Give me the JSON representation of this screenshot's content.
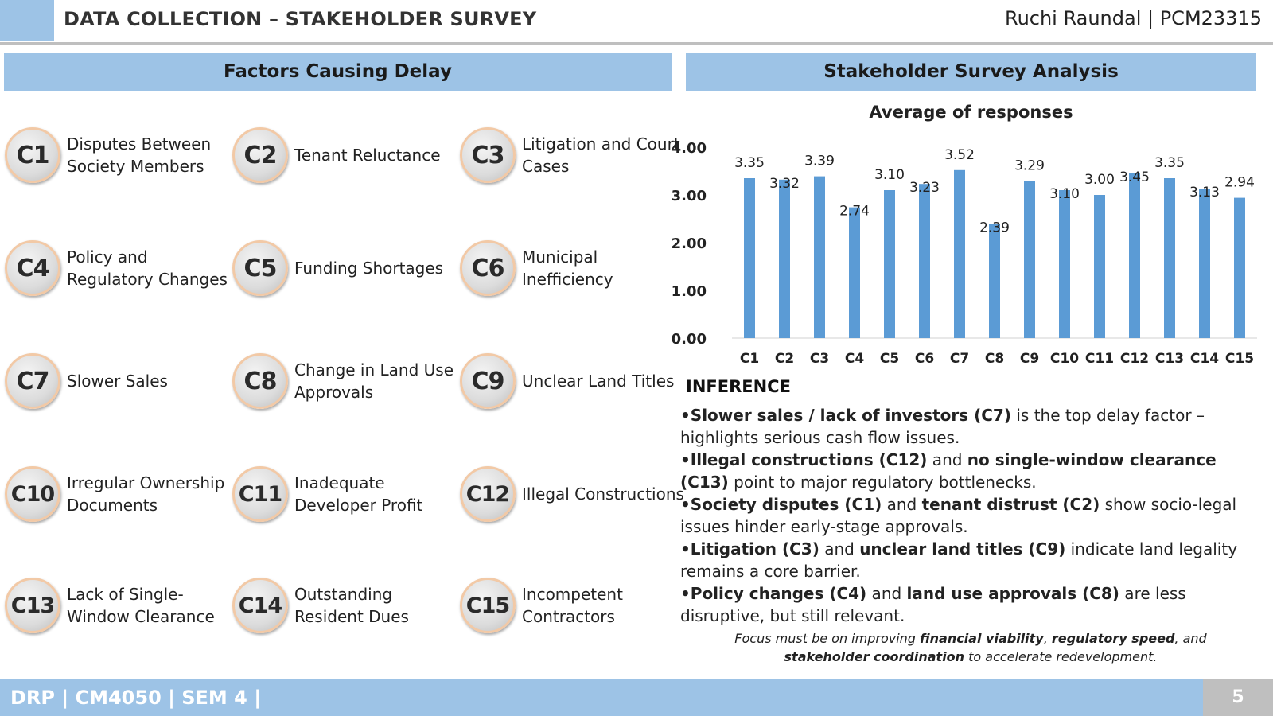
{
  "header": {
    "title": "DATA COLLECTION – STAKEHOLDER SURVEY",
    "author": "Ruchi Raundal | PCM23315"
  },
  "left_section": {
    "title": "Factors Causing Delay",
    "factors": [
      {
        "code": "C1",
        "label": "Disputes Between Society Members"
      },
      {
        "code": "C2",
        "label": "Tenant Reluctance"
      },
      {
        "code": "C3",
        "label": "Litigation and Court Cases"
      },
      {
        "code": "C4",
        "label": "Policy and Regulatory Changes"
      },
      {
        "code": "C5",
        "label": "Funding Shortages"
      },
      {
        "code": "C6",
        "label": "Municipal Inefficiency"
      },
      {
        "code": "C7",
        "label": "Slower Sales"
      },
      {
        "code": "C8",
        "label": "Change in Land Use Approvals"
      },
      {
        "code": "C9",
        "label": "Unclear Land Titles"
      },
      {
        "code": "C10",
        "label": "Irregular Ownership Documents"
      },
      {
        "code": "C11",
        "label": "Inadequate Developer Profit"
      },
      {
        "code": "C12",
        "label": "Illegal Constructions"
      },
      {
        "code": "C13",
        "label": "Lack of Single-Window Clearance"
      },
      {
        "code": "C14",
        "label": "Outstanding Resident Dues"
      },
      {
        "code": "C15",
        "label": "Incompetent Contractors"
      }
    ]
  },
  "right_section": {
    "title": "Stakeholder Survey Analysis"
  },
  "chart_data": {
    "type": "bar",
    "title": "Average of responses",
    "categories": [
      "C1",
      "C2",
      "C3",
      "C4",
      "C5",
      "C6",
      "C7",
      "C8",
      "C9",
      "C10",
      "C11",
      "C12",
      "C13",
      "C14",
      "C15"
    ],
    "values": [
      3.35,
      3.32,
      3.39,
      2.74,
      3.1,
      3.23,
      3.52,
      2.39,
      3.29,
      3.1,
      3.0,
      3.45,
      3.35,
      3.13,
      2.94
    ],
    "value_labels": [
      "3.35",
      "3.32",
      "3.39",
      "2.74",
      "3.10",
      "3.23",
      "3.52",
      "2.39",
      "3.29",
      "3.10",
      "3.00",
      "3.45",
      "3.35",
      "3.13",
      "2.94"
    ],
    "yticks": [
      "0.00",
      "1.00",
      "2.00",
      "3.00",
      "4.00"
    ],
    "ylim": [
      0,
      4
    ],
    "grid": false,
    "bar_color": "#5b9bd5"
  },
  "inference": {
    "heading": "INFERENCE",
    "items": [
      [
        {
          "t": "•Slower sales / lack of investors (C7)",
          "b": true
        },
        {
          "t": " is the top delay factor – highlights serious cash flow issues.",
          "b": false
        }
      ],
      [
        {
          "t": "•Illegal constructions (C12)",
          "b": true
        },
        {
          "t": " and ",
          "b": false
        },
        {
          "t": "no single-window clearance (C13)",
          "b": true
        },
        {
          "t": " point to major regulatory bottlenecks.",
          "b": false
        }
      ],
      [
        {
          "t": "•Society disputes (C1)",
          "b": true
        },
        {
          "t": " and ",
          "b": false
        },
        {
          "t": "tenant distrust (C2)",
          "b": true
        },
        {
          "t": " show socio-legal issues hinder early-stage approvals.",
          "b": false
        }
      ],
      [
        {
          "t": "•Litigation (C3)",
          "b": true
        },
        {
          "t": " and ",
          "b": false
        },
        {
          "t": "unclear land titles (C9)",
          "b": true
        },
        {
          "t": " indicate land legality remains a core barrier.",
          "b": false
        }
      ],
      [
        {
          "t": "•Policy changes (C4)",
          "b": true
        },
        {
          "t": " and ",
          "b": false
        },
        {
          "t": "land use approvals (C8)",
          "b": true
        },
        {
          "t": " are less disruptive, but still relevant.",
          "b": false
        }
      ]
    ],
    "focus": [
      {
        "t": "Focus must be on improving ",
        "b": false
      },
      {
        "t": "financial viability",
        "b": true
      },
      {
        "t": ", ",
        "b": false
      },
      {
        "t": "regulatory speed",
        "b": true
      },
      {
        "t": ", and ",
        "b": false
      },
      {
        "t": "stakeholder coordination",
        "b": true
      },
      {
        "t": " to accelerate redevelopment.",
        "b": false
      }
    ]
  },
  "footer": {
    "course": "DRP | CM4050  | SEM 4 |",
    "page_number": "5"
  }
}
